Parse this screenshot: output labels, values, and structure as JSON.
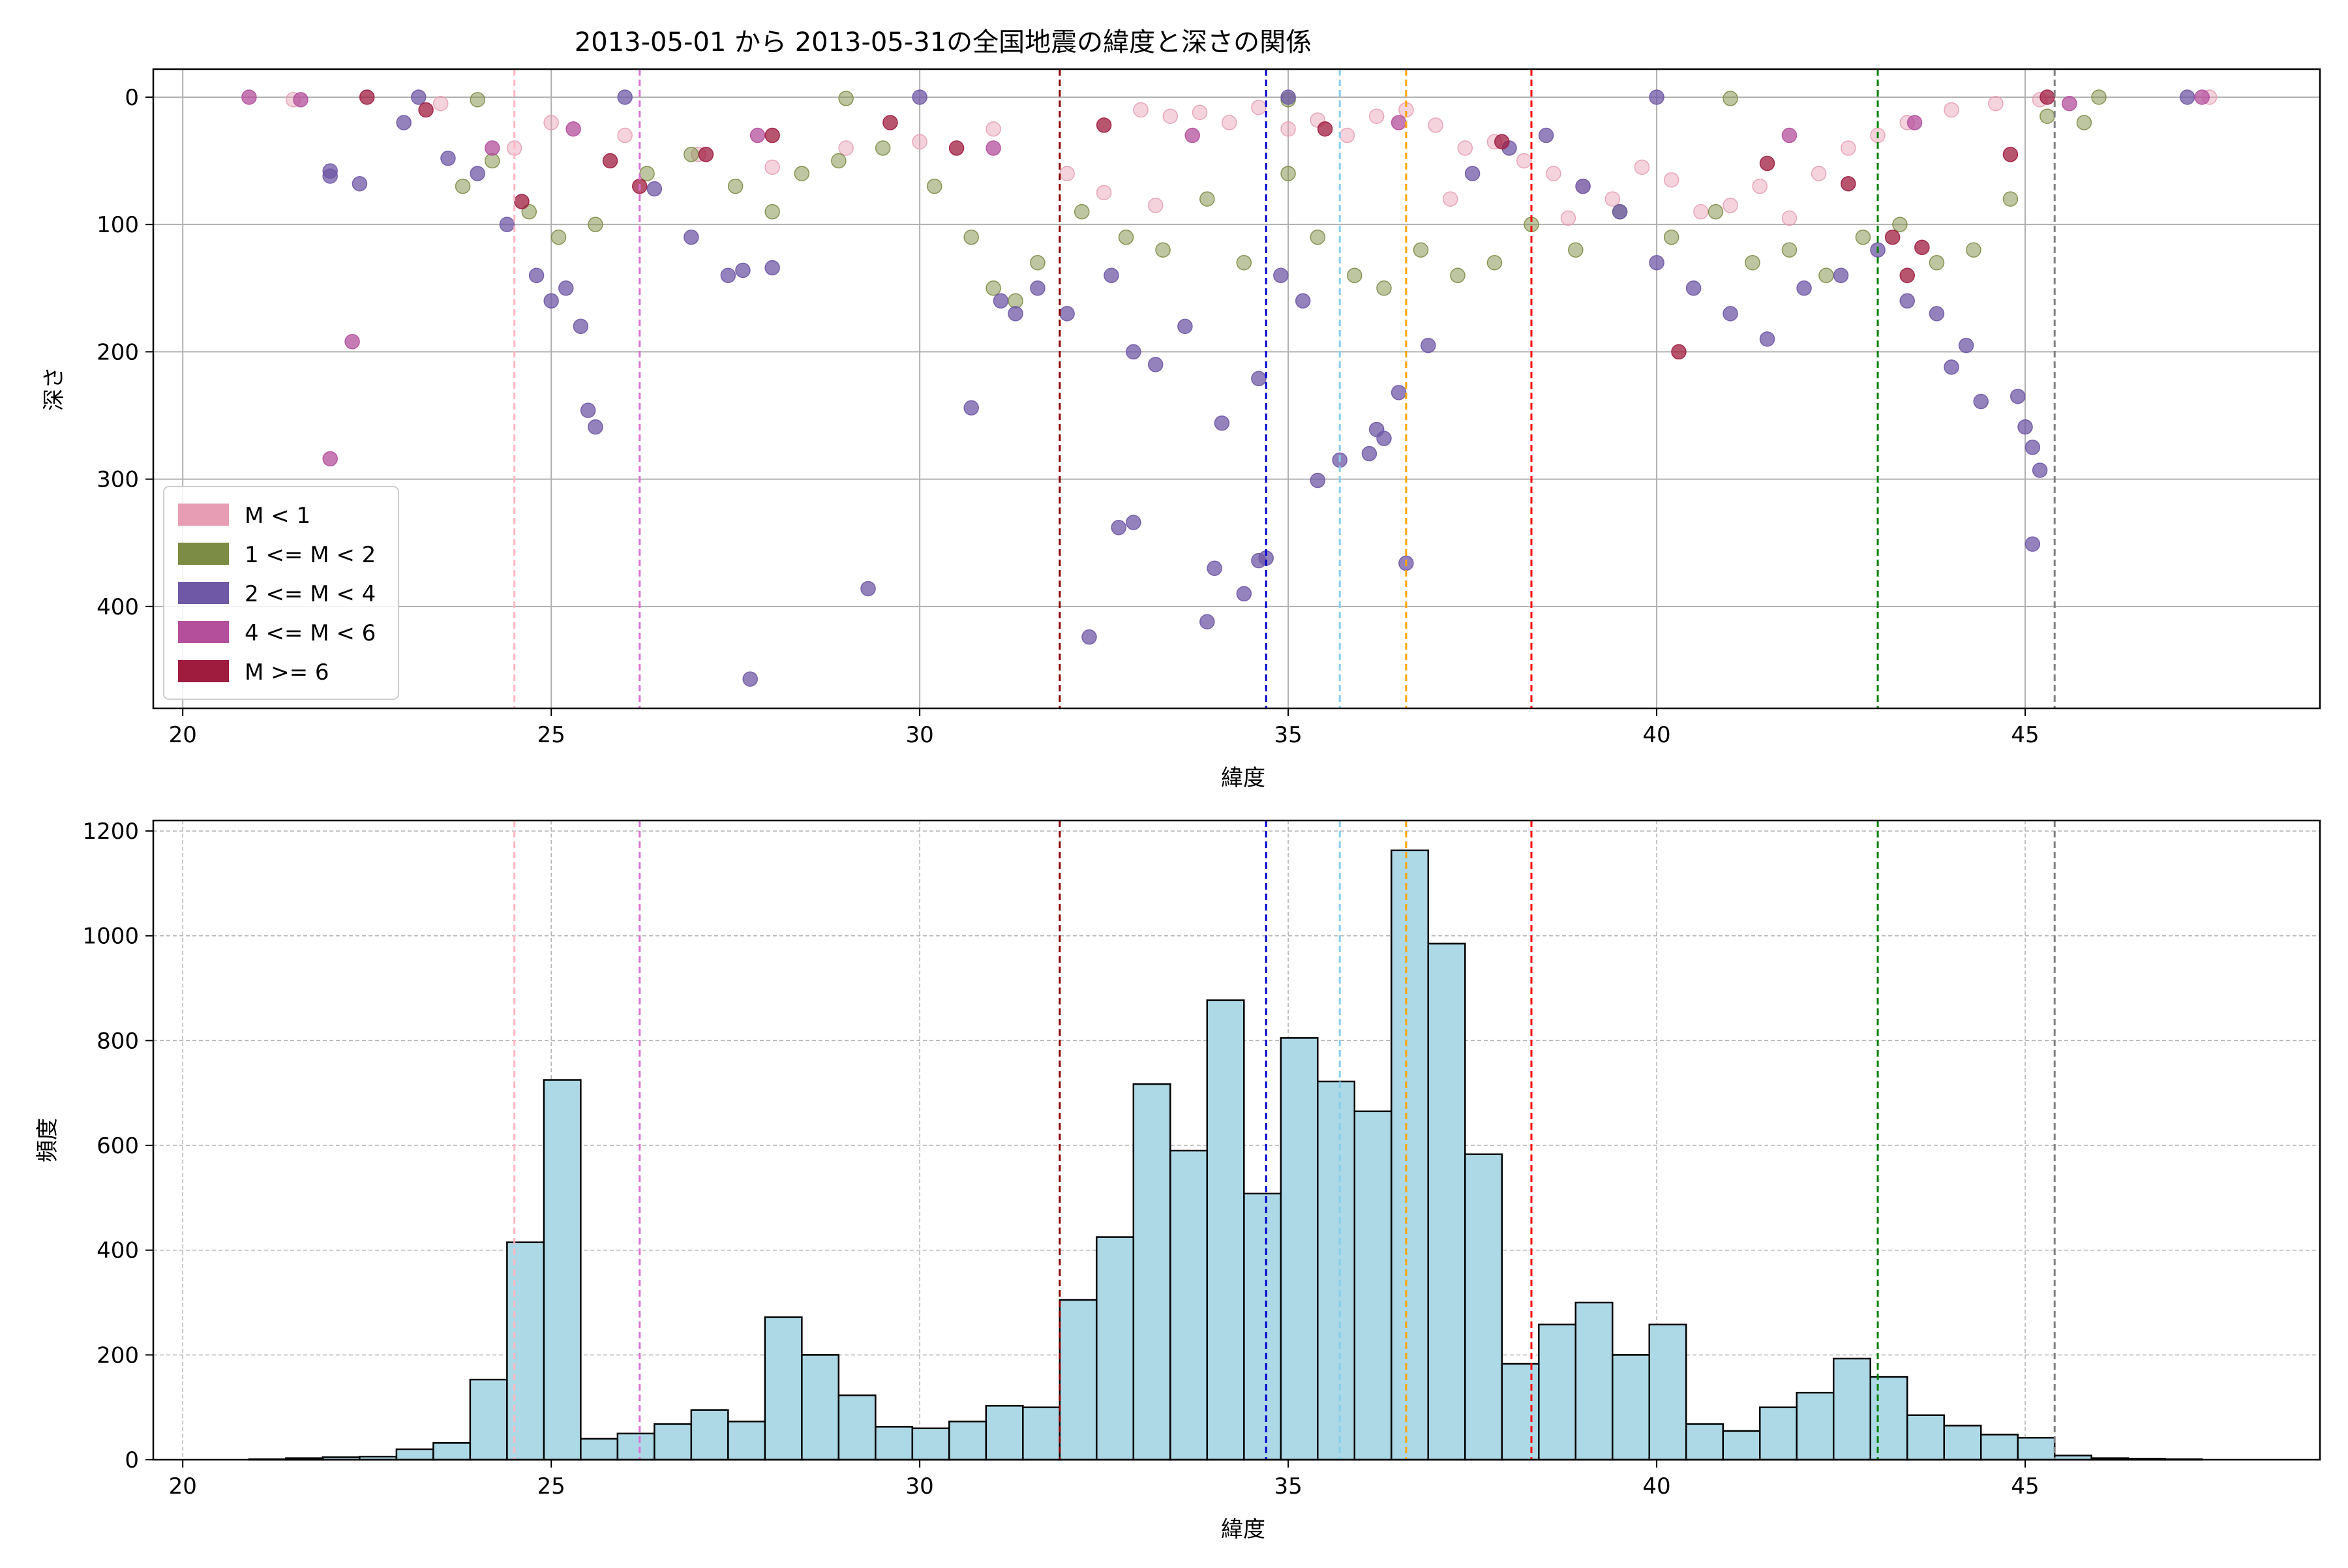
{
  "title": "2013-05-01 から 2013-05-31の全国地震の緯度と深さの関係",
  "colors": {
    "m_lt1": "#e79db4",
    "m_1_2": "#7c8c44",
    "m_2_4": "#6f58a6",
    "m_4_6": "#b44f9c",
    "m_ge6": "#9f1c3f",
    "hist_fill": "#add8e6",
    "hist_edge": "#000000"
  },
  "vlines": [
    {
      "x": 24.5,
      "color": "#ffb6c1"
    },
    {
      "x": 26.2,
      "color": "#da70d6"
    },
    {
      "x": 31.9,
      "color": "#8b0000"
    },
    {
      "x": 34.7,
      "color": "#0000cd"
    },
    {
      "x": 35.7,
      "color": "#87ceeb"
    },
    {
      "x": 36.6,
      "color": "#ffa500"
    },
    {
      "x": 38.3,
      "color": "#ff0000"
    },
    {
      "x": 43.0,
      "color": "#008000"
    },
    {
      "x": 45.4,
      "color": "#808080"
    }
  ],
  "chart_data": [
    {
      "type": "scatter",
      "title": "2013-05-01 から 2013-05-31の全国地震の緯度と深さの関係",
      "xlabel": "緯度",
      "ylabel": "深さ",
      "xlim": [
        19.6,
        49.0
      ],
      "ylim": [
        480,
        -22
      ],
      "y_inverted": true,
      "xticks": [
        20,
        25,
        30,
        35,
        40,
        45
      ],
      "yticks": [
        0,
        100,
        200,
        300,
        400
      ],
      "grid": true,
      "legend_position": "lower-left",
      "legend": [
        "M < 1",
        "1 <= M < 2",
        "2 <= M < 4",
        "4 <= M < 6",
        "M >= 6"
      ],
      "series": [
        {
          "name": "M < 1",
          "color": "#e79db4",
          "points": [
            [
              33.0,
              10
            ],
            [
              33.4,
              15
            ],
            [
              33.8,
              12
            ],
            [
              34.2,
              20
            ],
            [
              34.6,
              8
            ],
            [
              35.0,
              25
            ],
            [
              35.4,
              18
            ],
            [
              35.8,
              30
            ],
            [
              36.2,
              15
            ],
            [
              36.6,
              10
            ],
            [
              37.0,
              22
            ],
            [
              37.4,
              40
            ],
            [
              37.8,
              35
            ],
            [
              38.2,
              50
            ],
            [
              38.6,
              60
            ],
            [
              39.0,
              70
            ],
            [
              39.4,
              80
            ],
            [
              39.8,
              55
            ],
            [
              40.2,
              65
            ],
            [
              40.6,
              90
            ],
            [
              41.0,
              85
            ],
            [
              41.4,
              70
            ],
            [
              41.8,
              95
            ],
            [
              42.2,
              60
            ],
            [
              42.6,
              40
            ],
            [
              43.0,
              30
            ],
            [
              43.4,
              20
            ],
            [
              44.0,
              10
            ],
            [
              44.6,
              5
            ],
            [
              45.2,
              2
            ],
            [
              26.0,
              30
            ],
            [
              27.0,
              45
            ],
            [
              28.0,
              55
            ],
            [
              29.0,
              40
            ],
            [
              30.0,
              35
            ],
            [
              31.0,
              25
            ],
            [
              32.0,
              60
            ],
            [
              32.5,
              75
            ],
            [
              33.2,
              85
            ],
            [
              25.0,
              20
            ],
            [
              24.5,
              40
            ],
            [
              23.5,
              5
            ],
            [
              21.5,
              2
            ],
            [
              47.5,
              0
            ],
            [
              38.8,
              95
            ],
            [
              37.2,
              80
            ]
          ]
        },
        {
          "name": "1 <= M < 2",
          "color": "#7c8c44",
          "points": [
            [
              23.8,
              70
            ],
            [
              24.2,
              50
            ],
            [
              24.7,
              90
            ],
            [
              25.1,
              110
            ],
            [
              25.6,
              100
            ],
            [
              26.3,
              60
            ],
            [
              26.9,
              45
            ],
            [
              27.5,
              70
            ],
            [
              28.0,
              90
            ],
            [
              28.4,
              60
            ],
            [
              28.9,
              50
            ],
            [
              29.5,
              40
            ],
            [
              30.2,
              70
            ],
            [
              30.7,
              110
            ],
            [
              31.0,
              150
            ],
            [
              31.3,
              160
            ],
            [
              31.6,
              130
            ],
            [
              32.2,
              90
            ],
            [
              32.8,
              110
            ],
            [
              33.3,
              120
            ],
            [
              33.9,
              80
            ],
            [
              34.4,
              130
            ],
            [
              35.0,
              60
            ],
            [
              35.4,
              110
            ],
            [
              35.9,
              140
            ],
            [
              36.3,
              150
            ],
            [
              36.8,
              120
            ],
            [
              37.3,
              140
            ],
            [
              37.8,
              130
            ],
            [
              38.3,
              100
            ],
            [
              38.9,
              120
            ],
            [
              39.5,
              90
            ],
            [
              40.2,
              110
            ],
            [
              40.8,
              90
            ],
            [
              41.3,
              130
            ],
            [
              41.8,
              120
            ],
            [
              42.3,
              140
            ],
            [
              42.8,
              110
            ],
            [
              43.3,
              100
            ],
            [
              43.8,
              130
            ],
            [
              44.3,
              120
            ],
            [
              44.8,
              80
            ],
            [
              45.3,
              15
            ],
            [
              45.8,
              20
            ],
            [
              24.0,
              2
            ],
            [
              29.0,
              1
            ],
            [
              35.0,
              2
            ],
            [
              41.0,
              1
            ],
            [
              46.0,
              0
            ]
          ]
        },
        {
          "name": "2 <= M < 4",
          "color": "#6f58a6",
          "points": [
            [
              22.0,
              58
            ],
            [
              22.0,
              62
            ],
            [
              22.4,
              68
            ],
            [
              23.0,
              20
            ],
            [
              23.6,
              48
            ],
            [
              24.0,
              60
            ],
            [
              24.4,
              100
            ],
            [
              24.8,
              140
            ],
            [
              25.0,
              160
            ],
            [
              25.2,
              150
            ],
            [
              25.4,
              180
            ],
            [
              25.5,
              246
            ],
            [
              25.6,
              259
            ],
            [
              26.4,
              72
            ],
            [
              26.9,
              110
            ],
            [
              27.4,
              140
            ],
            [
              27.6,
              136
            ],
            [
              28.0,
              134
            ],
            [
              29.3,
              386
            ],
            [
              27.7,
              457
            ],
            [
              30.7,
              244
            ],
            [
              31.1,
              160
            ],
            [
              31.3,
              170
            ],
            [
              31.6,
              150
            ],
            [
              32.0,
              170
            ],
            [
              32.3,
              424
            ],
            [
              32.6,
              140
            ],
            [
              32.7,
              338
            ],
            [
              32.9,
              334
            ],
            [
              32.9,
              200
            ],
            [
              33.2,
              210
            ],
            [
              33.6,
              180
            ],
            [
              33.9,
              412
            ],
            [
              34.0,
              370
            ],
            [
              34.1,
              256
            ],
            [
              34.4,
              390
            ],
            [
              34.6,
              364
            ],
            [
              34.7,
              362
            ],
            [
              34.6,
              221
            ],
            [
              34.9,
              140
            ],
            [
              35.2,
              160
            ],
            [
              35.4,
              301
            ],
            [
              35.7,
              285
            ],
            [
              36.1,
              280
            ],
            [
              36.2,
              261
            ],
            [
              36.3,
              268
            ],
            [
              36.5,
              232
            ],
            [
              36.6,
              366
            ],
            [
              36.9,
              195
            ],
            [
              37.5,
              60
            ],
            [
              38.0,
              40
            ],
            [
              38.5,
              30
            ],
            [
              39.0,
              70
            ],
            [
              39.5,
              90
            ],
            [
              40.0,
              130
            ],
            [
              40.5,
              150
            ],
            [
              41.0,
              170
            ],
            [
              41.5,
              190
            ],
            [
              42.0,
              150
            ],
            [
              42.5,
              140
            ],
            [
              43.0,
              120
            ],
            [
              43.4,
              160
            ],
            [
              43.8,
              170
            ],
            [
              44.2,
              195
            ],
            [
              44.4,
              239
            ],
            [
              44.9,
              235
            ],
            [
              45.0,
              259
            ],
            [
              45.1,
              275
            ],
            [
              45.2,
              293
            ],
            [
              45.1,
              351
            ],
            [
              44.0,
              212
            ],
            [
              26.0,
              0
            ],
            [
              30.0,
              0
            ],
            [
              35.0,
              0
            ],
            [
              40.0,
              0
            ],
            [
              47.2,
              0
            ],
            [
              23.2,
              0
            ]
          ]
        },
        {
          "name": "4 <= M < 6",
          "color": "#b44f9c",
          "points": [
            [
              20.9,
              0
            ],
            [
              21.6,
              2
            ],
            [
              22.0,
              284
            ],
            [
              22.3,
              192
            ],
            [
              24.2,
              40
            ],
            [
              25.3,
              25
            ],
            [
              27.8,
              30
            ],
            [
              31.0,
              40
            ],
            [
              33.7,
              30
            ],
            [
              36.5,
              20
            ],
            [
              41.8,
              30
            ],
            [
              43.5,
              20
            ],
            [
              45.6,
              5
            ],
            [
              47.4,
              0
            ]
          ]
        },
        {
          "name": "M >= 6",
          "color": "#9f1c3f",
          "points": [
            [
              22.5,
              0
            ],
            [
              23.3,
              10
            ],
            [
              24.6,
              82
            ],
            [
              25.8,
              50
            ],
            [
              26.2,
              70
            ],
            [
              27.1,
              45
            ],
            [
              28.0,
              30
            ],
            [
              29.6,
              20
            ],
            [
              30.5,
              40
            ],
            [
              32.5,
              22
            ],
            [
              35.5,
              25
            ],
            [
              37.9,
              35
            ],
            [
              40.3,
              200
            ],
            [
              41.5,
              52
            ],
            [
              42.6,
              68
            ],
            [
              43.2,
              110
            ],
            [
              43.4,
              140
            ],
            [
              43.6,
              118
            ],
            [
              44.8,
              45
            ],
            [
              45.3,
              0
            ]
          ]
        }
      ]
    },
    {
      "type": "bar",
      "subtype": "histogram",
      "xlabel": "緯度",
      "ylabel": "頻度",
      "xlim": [
        19.6,
        49.0
      ],
      "ylim": [
        0,
        1220
      ],
      "xticks": [
        20,
        25,
        30,
        35,
        40,
        45
      ],
      "yticks": [
        0,
        200,
        400,
        600,
        800,
        1000,
        1200
      ],
      "grid": true,
      "bin_edges": [
        20.9,
        21.4,
        21.9,
        22.4,
        22.9,
        23.4,
        23.9,
        24.4,
        24.9,
        25.4,
        25.9,
        26.4,
        26.9,
        27.4,
        27.9,
        28.4,
        28.9,
        29.4,
        29.9,
        30.4,
        30.9,
        31.4,
        31.9,
        32.4,
        32.9,
        33.4,
        33.9,
        34.4,
        34.9,
        35.4,
        35.9,
        36.4,
        36.9,
        37.4,
        37.9,
        38.4,
        38.9,
        39.4,
        39.9,
        40.4,
        40.9,
        41.4,
        41.9,
        42.4,
        42.9,
        43.4,
        43.9,
        44.4,
        44.9,
        45.4,
        45.9,
        46.4,
        46.9,
        47.4
      ],
      "values": [
        1,
        3,
        5,
        6,
        20,
        32,
        153,
        415,
        725,
        40,
        50,
        68,
        95,
        73,
        272,
        200,
        123,
        63,
        60,
        73,
        103,
        100,
        305,
        425,
        717,
        590,
        877,
        508,
        805,
        722,
        665,
        1163,
        985,
        583,
        183,
        258,
        300,
        200,
        258,
        68,
        55,
        100,
        128,
        193,
        158,
        85,
        65,
        48,
        42,
        8,
        3,
        2,
        1
      ]
    }
  ]
}
